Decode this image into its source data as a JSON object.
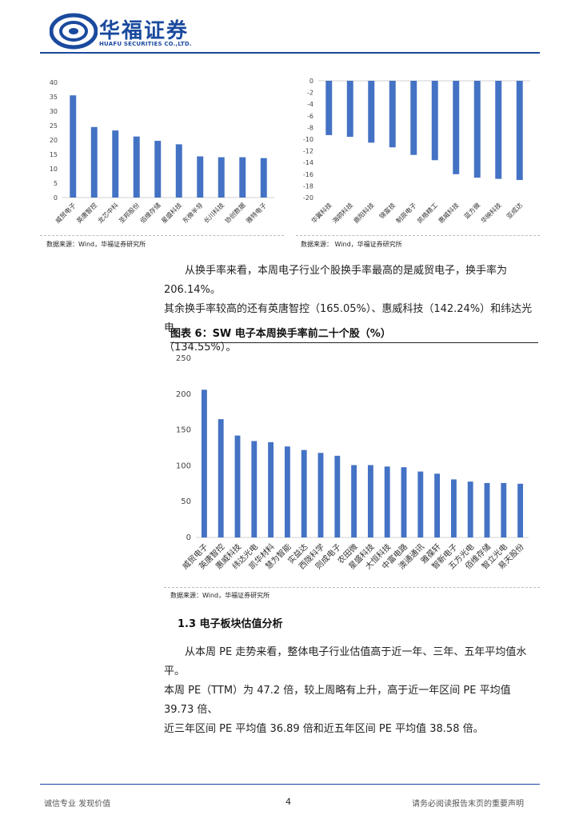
{
  "header": {
    "logo_cn": "华福证券",
    "logo_en": "HUAFU SECURITIES CO.,LTD.",
    "logo_color": "#1a4a9e"
  },
  "top_left": {
    "source": "数据来源：Wind，华福证券研究所"
  },
  "top_right": {
    "source": "数据来源： Wind，华福证券研究所"
  },
  "para1": {
    "line1": "从换手率来看，本周电子行业个股换手率最高的是威贸电子，换手率为 206.14%。",
    "line2": "其余换手率较高的还有英唐智控（165.05%）、惠威科技（142.24%）和纬达光电",
    "line3": "（134.55%）。"
  },
  "figure6": {
    "title": "图表 6：SW 电子本周换手率前二十个股（%）",
    "source": "数据来源：Wind，华福证券研究所"
  },
  "section": {
    "title": "1.3 电子板块估值分析"
  },
  "para2": {
    "line1": "从本周 PE 走势来看，整体电子行业估值高于近一年、三年、五年平均值水平。",
    "line2": "本周 PE（TTM）为 47.2 倍，较上周略有上升，高于近一年区间 PE 平均值 39.73 倍、",
    "line3": "近三年区间 PE 平均值 36.89 倍和近五年区间 PE 平均值 38.58 倍。"
  },
  "footer": {
    "left": "诚信专业  发现价值",
    "page": "4",
    "right": "请务必阅读报告末页的重要声明"
  },
  "bar_color": "#4472c4",
  "chart_data": [
    {
      "type": "bar",
      "title": "",
      "categories": [
        "威贸电子",
        "英唐智控",
        "龙芯中科",
        "圣邦股份",
        "佰维存储",
        "星盛科技",
        "东微半导",
        "长川科技",
        "协创数据",
        "雅特电子"
      ],
      "values": [
        35.5,
        24.5,
        23.3,
        21.2,
        19.7,
        18.5,
        14.3,
        14.0,
        14.0,
        13.7
      ],
      "ylim": [
        0,
        40
      ],
      "yticks": [
        0,
        5,
        10,
        15,
        20,
        25,
        30,
        35,
        40
      ],
      "xlabel": "",
      "ylabel": "",
      "grid": false
    },
    {
      "type": "bar",
      "title": "",
      "categories": [
        "华翼科技",
        "海鸥科技",
        "鼎阳科技",
        "锦富技",
        "制辰电子",
        "凯格精工",
        "惠威科技",
        "蓝方微",
        "华映科技",
        "亚成达"
      ],
      "values": [
        -9.3,
        -9.6,
        -10.6,
        -11.4,
        -12.7,
        -13.6,
        -16.0,
        -16.6,
        -16.8,
        -17.0
      ],
      "ylim": [
        -20,
        0
      ],
      "yticks": [
        0,
        -2,
        -4,
        -6,
        -8,
        -10,
        -12,
        -14,
        -16,
        -18,
        -20
      ],
      "xlabel": "",
      "ylabel": "",
      "grid": false
    },
    {
      "type": "bar",
      "title": "图表 6：SW 电子本周换手率前二十个股（%）",
      "categories": [
        "威贸电子",
        "英唐智控",
        "惠威科技",
        "纬达光电",
        "凯华材料",
        "慧为智能",
        "实益达",
        "西陇科学",
        "则成电子",
        "农田微",
        "星盛科技",
        "大恒科技",
        "中富电路",
        "澳通通讯",
        "雅葆轩",
        "智新电子",
        "五方光电",
        "佰维存储",
        "智立光电",
        "易天股份"
      ],
      "values": [
        206.14,
        165.05,
        142.24,
        134.55,
        133,
        127,
        122,
        118,
        114,
        101,
        101,
        99,
        98,
        92,
        89,
        81,
        78,
        76,
        76,
        75
      ],
      "ylim": [
        0,
        250
      ],
      "yticks": [
        0,
        50,
        100,
        150,
        200,
        250
      ],
      "xlabel": "",
      "ylabel": "",
      "grid": false
    }
  ]
}
